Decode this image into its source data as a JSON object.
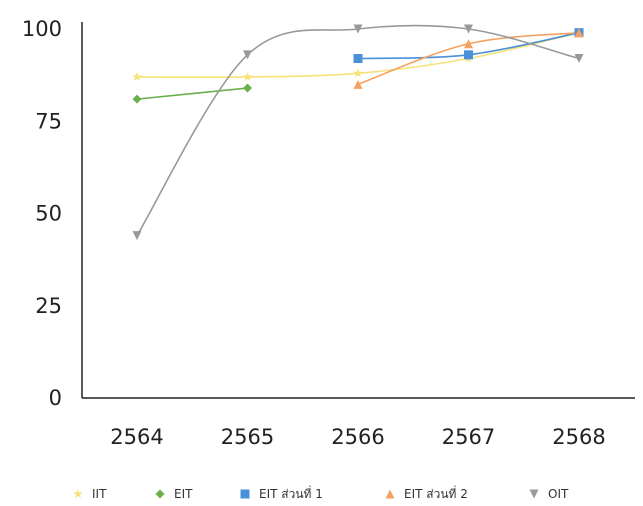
{
  "chart_data": {
    "type": "line",
    "categories": [
      "2564",
      "2565",
      "2566",
      "2567",
      "2568"
    ],
    "ylim": [
      0,
      100
    ],
    "yticks": [
      0,
      25,
      50,
      75,
      100
    ],
    "legend_position": "bottom",
    "grid": false,
    "series": [
      {
        "name": "IIT",
        "color": "#f7e27a",
        "marker": "star",
        "values": [
          87,
          87,
          88,
          92,
          99
        ]
      },
      {
        "name": "EIT",
        "color": "#6ab04c",
        "marker": "diamond",
        "values": [
          81,
          84,
          null,
          null,
          null
        ]
      },
      {
        "name": "EIT ส่วนที่ 1",
        "color": "#4a90d9",
        "marker": "square",
        "values": [
          null,
          null,
          92,
          93,
          99
        ]
      },
      {
        "name": "EIT ส่วนที่ 2",
        "color": "#f4a261",
        "marker": "triangle-up",
        "values": [
          null,
          null,
          85,
          96,
          99
        ]
      },
      {
        "name": "OIT",
        "color": "#999999",
        "marker": "triangle-down",
        "values": [
          44,
          93,
          100,
          100,
          92
        ]
      }
    ]
  }
}
